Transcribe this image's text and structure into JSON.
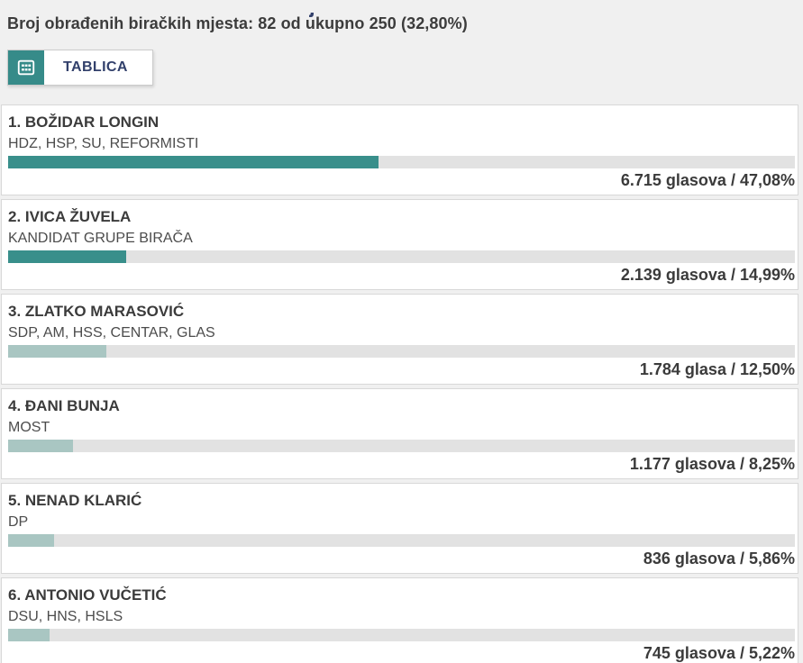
{
  "page": {
    "clipped_title_fragment": "j",
    "summary": "Broj obrađenih biračkih mjesta: 82 od ukupno 250 (32,80%)",
    "processed_stations": 82,
    "total_stations": 250,
    "processed_percent": "32,80%"
  },
  "tabs": [
    {
      "label": "TABLICA",
      "icon": "table-icon"
    }
  ],
  "candidates": [
    {
      "name": "1. BOŽIDAR LONGIN",
      "list": "HDZ, HSP, SU, REFORMISTI",
      "votes": 6715,
      "votes_label": "6.715 glasova / 47,08%",
      "percent": 47.08,
      "highlight": true
    },
    {
      "name": "2. IVICA ŽUVELA",
      "list": "KANDIDAT GRUPE BIRAČA",
      "votes": 2139,
      "votes_label": "2.139 glasova / 14,99%",
      "percent": 14.99,
      "highlight": true
    },
    {
      "name": "3. ZLATKO MARASOVIĆ",
      "list": "SDP, AM, HSS, CENTAR, GLAS",
      "votes": 1784,
      "votes_label": "1.784 glasa / 12,50%",
      "percent": 12.5,
      "highlight": false
    },
    {
      "name": "4. ĐANI BUNJA",
      "list": "MOST",
      "votes": 1177,
      "votes_label": "1.177 glasova / 8,25%",
      "percent": 8.25,
      "highlight": false
    },
    {
      "name": "5. NENAD KLARIĆ",
      "list": "DP",
      "votes": 836,
      "votes_label": "836 glasova / 5,86%",
      "percent": 5.86,
      "highlight": false
    },
    {
      "name": "6. ANTONIO VUČETIĆ",
      "list": "DSU, HNS, HSLS",
      "votes": 745,
      "votes_label": "745 glasova / 5,22%",
      "percent": 5.22,
      "highlight": false
    }
  ],
  "colors": {
    "page_bg": "#f0f0f0",
    "card_bg": "#ffffff",
    "card_border": "#d8d8d8",
    "tab_border": "#cccccc",
    "tab_accent": "#368b89",
    "tab_text": "#32406b",
    "bar_dark": "#398f8b",
    "bar_light": "#a9c6c2",
    "bar_track": "#e2e2e2",
    "text_primary": "#3b3b3b",
    "text_secondary": "#4c4c4c"
  }
}
